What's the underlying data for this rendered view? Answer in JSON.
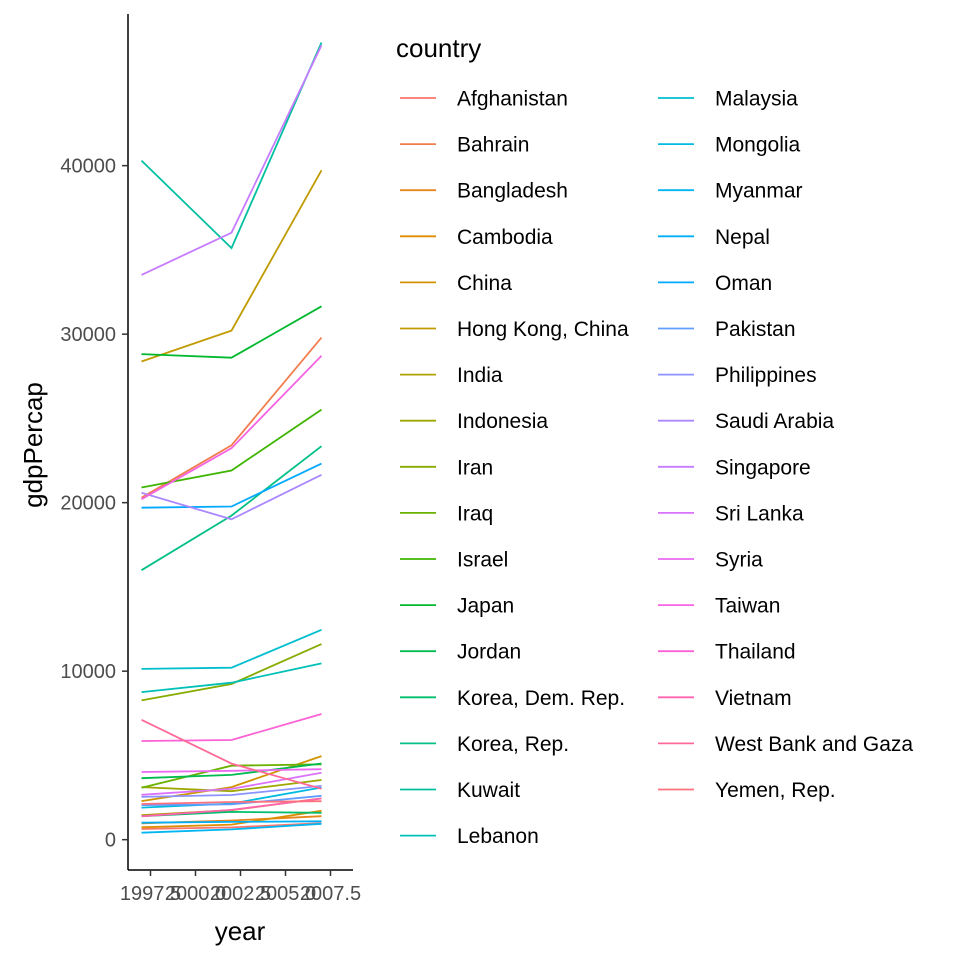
{
  "chart_data": {
    "type": "line",
    "title": "",
    "xlabel": "year",
    "ylabel": "gdpPercap",
    "xlim": [
      1996.25,
      2008.75
    ],
    "ylim": [
      -1800,
      49000
    ],
    "x_ticks": [
      "1997.5",
      "2000.0",
      "2002.5",
      "2005.0",
      "2007.5"
    ],
    "x_tick_values": [
      1997.5,
      2000,
      2002.5,
      2005,
      2007.5
    ],
    "y_ticks": [
      "0",
      "10000",
      "20000",
      "30000",
      "40000"
    ],
    "y_tick_values": [
      0,
      10000,
      20000,
      30000,
      40000
    ],
    "grid": false,
    "legend": {
      "title": "country",
      "position": "right",
      "columns": 2
    },
    "x": [
      1997,
      2002,
      2007
    ],
    "series": [
      {
        "name": "Afghanistan",
        "color": "#F8766D",
        "values": [
          635,
          727,
          975
        ]
      },
      {
        "name": "Bahrain",
        "color": "#F07E4F",
        "values": [
          20292,
          23404,
          29796
        ]
      },
      {
        "name": "Bangladesh",
        "color": "#E7861B",
        "values": [
          973,
          1136,
          1391
        ]
      },
      {
        "name": "Cambodia",
        "color": "#DC8E00",
        "values": [
          734,
          896,
          1714
        ]
      },
      {
        "name": "China",
        "color": "#CF9400",
        "values": [
          2289,
          3119,
          4959
        ]
      },
      {
        "name": "Hong Kong, China",
        "color": "#C09B00",
        "values": [
          28378,
          30209,
          39725
        ]
      },
      {
        "name": "India",
        "color": "#B0A100",
        "values": [
          1459,
          1747,
          2452
        ]
      },
      {
        "name": "Indonesia",
        "color": "#9DA700",
        "values": [
          3119,
          2874,
          3541
        ]
      },
      {
        "name": "Iran",
        "color": "#87AC00",
        "values": [
          8264,
          9241,
          11606
        ]
      },
      {
        "name": "Iraq",
        "color": "#6BB100",
        "values": [
          3076,
          4391,
          4471
        ]
      },
      {
        "name": "Israel",
        "color": "#3EB500",
        "values": [
          20897,
          21906,
          25523
        ]
      },
      {
        "name": "Japan",
        "color": "#00B92E",
        "values": [
          28817,
          28605,
          31656
        ]
      },
      {
        "name": "Jordan",
        "color": "#00BB4E",
        "values": [
          3645,
          3845,
          4519
        ]
      },
      {
        "name": "Korea, Dem. Rep.",
        "color": "#00BE6C",
        "values": [
          1391,
          1647,
          1593
        ]
      },
      {
        "name": "Korea, Rep.",
        "color": "#00BF87",
        "values": [
          15994,
          19234,
          23348
        ]
      },
      {
        "name": "Kuwait",
        "color": "#00C0A0",
        "values": [
          40301,
          35110,
          47307
        ]
      },
      {
        "name": "Lebanon",
        "color": "#00C0B8",
        "values": [
          8755,
          9314,
          10461
        ]
      },
      {
        "name": "Malaysia",
        "color": "#00BECD",
        "values": [
          10132,
          10206,
          12452
        ]
      },
      {
        "name": "Mongolia",
        "color": "#00BBE0",
        "values": [
          1902,
          2140,
          3096
        ]
      },
      {
        "name": "Myanmar",
        "color": "#00B6F1",
        "values": [
          415,
          611,
          944
        ]
      },
      {
        "name": "Nepal",
        "color": "#00B0F6",
        "values": [
          1010,
          1057,
          1091
        ]
      },
      {
        "name": "Oman",
        "color": "#00A9FF",
        "values": [
          19702,
          19775,
          22316
        ]
      },
      {
        "name": "Pakistan",
        "color": "#619CFF",
        "values": [
          2049,
          2093,
          2606
        ]
      },
      {
        "name": "Philippines",
        "color": "#8B93FF",
        "values": [
          2537,
          2650,
          3190
        ]
      },
      {
        "name": "Saudi Arabia",
        "color": "#AC88FF",
        "values": [
          20586,
          19014,
          21655
        ]
      },
      {
        "name": "Singapore",
        "color": "#C77CFF",
        "values": [
          33519,
          36023,
          47143
        ]
      },
      {
        "name": "Sri Lanka",
        "color": "#DB72FB",
        "values": [
          2665,
          3015,
          3970
        ]
      },
      {
        "name": "Syria",
        "color": "#EA6AF1",
        "values": [
          4014,
          4090,
          4185
        ]
      },
      {
        "name": "Taiwan",
        "color": "#F564E3",
        "values": [
          20207,
          23235,
          28718
        ]
      },
      {
        "name": "Thailand",
        "color": "#FC61D5",
        "values": [
          5853,
          5913,
          7458
        ]
      },
      {
        "name": "Vietnam",
        "color": "#FF64B0",
        "values": [
          1386,
          1764,
          2442
        ]
      },
      {
        "name": "West Bank and Gaza",
        "color": "#FF6A98",
        "values": [
          7111,
          4516,
          3025
        ]
      },
      {
        "name": "Yemen, Rep.",
        "color": "#FB727D",
        "values": [
          2117,
          2235,
          2281
        ]
      }
    ]
  }
}
